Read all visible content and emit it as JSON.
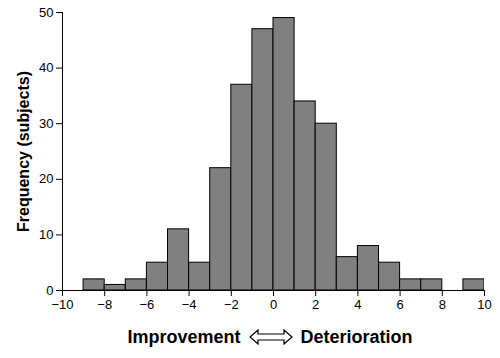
{
  "chart_data": {
    "type": "histogram",
    "bins": [
      -9,
      -8,
      -7,
      -6,
      -5,
      -4,
      -3,
      -2,
      -1,
      0,
      1,
      2,
      3,
      4,
      5,
      6,
      7,
      8,
      9,
      10
    ],
    "values": [
      2,
      1,
      2,
      5,
      11,
      5,
      22,
      37,
      47,
      49,
      34,
      30,
      6,
      8,
      5,
      2,
      2,
      0,
      2
    ],
    "color": "#808080",
    "xlim": [
      -10,
      10
    ],
    "xticks": [
      -10,
      -8,
      -6,
      -4,
      -2,
      0,
      2,
      4,
      6,
      8,
      10
    ],
    "ylim": [
      0,
      50
    ],
    "yticks": [
      0,
      10,
      20,
      30,
      40,
      50
    ],
    "y_label": "Frequency (subjects)",
    "x_label": [
      "Improvement",
      "Deterioration"
    ],
    "grid": false
  }
}
